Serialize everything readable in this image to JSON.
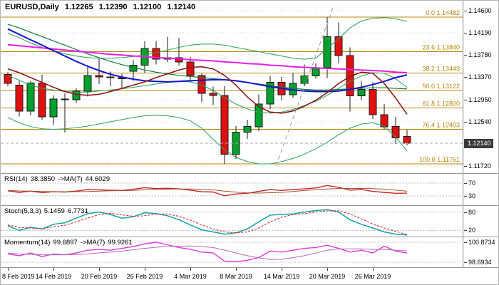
{
  "header": {
    "symbol": "EURUSD,Daily",
    "open": "1.12265",
    "high": "1.12390",
    "low": "1.12100",
    "close": "1.12140"
  },
  "panels": {
    "rsi": {
      "name": "RSI(14)",
      "value": "38.3850",
      "ma_name": "->MA(7)",
      "ma_value": "44.6029"
    },
    "stoch": {
      "name": "Stoch(5,3,3)",
      "value": "5.1459",
      "signal_value": "6.7731"
    },
    "momentum": {
      "name": "Momentum(14)",
      "value": "99.6897",
      "ma_name": "->MA(7)",
      "ma_value": "99.9261"
    }
  },
  "colors": {
    "background": "#FFFFFF",
    "grid": "#D6D6D6",
    "level": "#C0C0C0",
    "fib": "#B8860B",
    "candle_up": "#00A12C",
    "candle_down": "#E01010",
    "candle_outline": "#1A1A1A",
    "badge_bg": "#3A3A3A",
    "badge_text": "#FFFFFF",
    "trendline": "#999999",
    "current_line": "#AAAAAA"
  },
  "chart_data": {
    "type": "candlestick",
    "symbol": "EURUSD",
    "timeframe": "Daily",
    "candle_step": 16,
    "x_labels": [
      {
        "text": "8 Feb 2019",
        "i": 0
      },
      {
        "text": "14 Feb 2019",
        "i": 4
      },
      {
        "text": "20 Feb 2019",
        "i": 8
      },
      {
        "text": "26 Feb 2019",
        "i": 12
      },
      {
        "text": "4 Mar 2019",
        "i": 16
      },
      {
        "text": "8 Mar 2019",
        "i": 20
      },
      {
        "text": "14 Mar 2019",
        "i": 24
      },
      {
        "text": "20 Mar 2019",
        "i": 28
      },
      {
        "text": "26 Mar 2019",
        "i": 32
      }
    ],
    "main": {
      "price_top": 1.146,
      "price_bottom": 1.1172,
      "axis_ticks": [
        {
          "label": "1.14600",
          "price": 1.146
        },
        {
          "label": "1.14190",
          "price": 1.1419
        },
        {
          "label": "1.13780",
          "price": 1.1378
        },
        {
          "label": "1.13370",
          "price": 1.1337
        },
        {
          "label": "1.12950",
          "price": 1.1295
        },
        {
          "label": "1.12540",
          "price": 1.1254
        },
        {
          "label": "1.11720",
          "price": 1.1172
        }
      ],
      "current": {
        "label": "1.12140",
        "price": 1.1214
      },
      "fibonacci": [
        {
          "text": "0.0  1.14482",
          "price": 1.14482
        },
        {
          "text": "23.6  1.13840",
          "price": 1.1384
        },
        {
          "text": "38.2  1.13443",
          "price": 1.13443
        },
        {
          "text": "50.0  1.13122",
          "price": 1.13122
        },
        {
          "text": "61.8  1.12800",
          "price": 1.128
        },
        {
          "text": "76.4  1.12403",
          "price": 1.12403
        },
        {
          "text": "100.0  1.11761",
          "price": 1.11761
        }
      ],
      "trendline": {
        "i1": 23.5,
        "p1": 1.1172,
        "i2": 28.5,
        "p2": 1.1465
      },
      "candles": [
        [
          1.1342,
          1.1346,
          1.132,
          1.1325
        ],
        [
          1.1322,
          1.133,
          1.1264,
          1.1274
        ],
        [
          1.1274,
          1.133,
          1.1266,
          1.1326
        ],
        [
          1.1326,
          1.1341,
          1.1258,
          1.1263
        ],
        [
          1.1263,
          1.1303,
          1.1248,
          1.1296
        ],
        [
          1.1296,
          1.1307,
          1.1234,
          1.1295
        ],
        [
          1.1295,
          1.1316,
          1.1289,
          1.1311
        ],
        [
          1.1311,
          1.1359,
          1.1301,
          1.134
        ],
        [
          1.134,
          1.1371,
          1.1324,
          1.1337
        ],
        [
          1.1337,
          1.1347,
          1.132,
          1.1336
        ],
        [
          1.1336,
          1.1343,
          1.1316,
          1.1334
        ],
        [
          1.1348,
          1.1368,
          1.133,
          1.1359
        ],
        [
          1.1359,
          1.1403,
          1.1345,
          1.139
        ],
        [
          1.139,
          1.1404,
          1.136,
          1.137
        ],
        [
          1.137,
          1.1412,
          1.1365,
          1.1373
        ],
        [
          1.1373,
          1.141,
          1.1358,
          1.1365
        ],
        [
          1.1365,
          1.1374,
          1.133,
          1.134
        ],
        [
          1.134,
          1.1344,
          1.129,
          1.1307
        ],
        [
          1.1307,
          1.1319,
          1.1285,
          1.1303
        ],
        [
          1.1303,
          1.132,
          1.1176,
          1.1194
        ],
        [
          1.1194,
          1.1246,
          1.1185,
          1.1235
        ],
        [
          1.1235,
          1.1258,
          1.1222,
          1.1245
        ],
        [
          1.1245,
          1.1305,
          1.1237,
          1.1287
        ],
        [
          1.1287,
          1.1339,
          1.1278,
          1.1327
        ],
        [
          1.1327,
          1.1337,
          1.1294,
          1.1304
        ],
        [
          1.1304,
          1.1345,
          1.1298,
          1.1325
        ],
        [
          1.1325,
          1.136,
          1.132,
          1.1339
        ],
        [
          1.1339,
          1.1362,
          1.1334,
          1.1354
        ],
        [
          1.1354,
          1.1448,
          1.1335,
          1.1412
        ],
        [
          1.1412,
          1.1438,
          1.1363,
          1.1377
        ],
        [
          1.1377,
          1.1392,
          1.1273,
          1.1302
        ],
        [
          1.1302,
          1.133,
          1.1294,
          1.1314
        ],
        [
          1.1314,
          1.1327,
          1.1259,
          1.1267
        ],
        [
          1.1267,
          1.1287,
          1.124,
          1.1245
        ],
        [
          1.1245,
          1.1263,
          1.1213,
          1.1224
        ],
        [
          1.12265,
          1.1239,
          1.121,
          1.1214
        ]
      ],
      "overlays": [
        {
          "name": "bollinger-upper-band",
          "color": "#28A05A",
          "width": 1,
          "values": [
            1.1418,
            1.141,
            1.14,
            1.1392,
            1.1386,
            1.138,
            1.1376,
            1.1373,
            1.1372,
            1.1372,
            1.1373,
            1.1375,
            1.1378,
            1.1382,
            1.1387,
            1.1392,
            1.1396,
            1.1398,
            1.1398,
            1.1396,
            1.1392,
            1.1388,
            1.1384,
            1.138,
            1.1376,
            1.1372,
            1.137,
            1.1372,
            1.139,
            1.1408,
            1.1428,
            1.1441,
            1.1446,
            1.1447,
            1.1445,
            1.144
          ]
        },
        {
          "name": "bollinger-middle-band",
          "color": "#28A05A",
          "width": 1,
          "values": [
            1.134,
            1.1331,
            1.1322,
            1.1316,
            1.1313,
            1.131,
            1.1309,
            1.1309,
            1.1311,
            1.1313,
            1.1315,
            1.1318,
            1.1321,
            1.1324,
            1.1327,
            1.1329,
            1.1328,
            1.1322,
            1.1312,
            1.1299,
            1.1287,
            1.1278,
            1.1272,
            1.127,
            1.1272,
            1.1277,
            1.1284,
            1.1292,
            1.1303,
            1.1316,
            1.1329,
            1.1339,
            1.1345,
            1.1344,
            1.1334,
            1.1318
          ]
        },
        {
          "name": "bollinger-lower-band",
          "color": "#28A05A",
          "width": 1,
          "values": [
            1.1262,
            1.1252,
            1.1245,
            1.1241,
            1.124,
            1.1241,
            1.1243,
            1.1246,
            1.125,
            1.1254,
            1.1258,
            1.1262,
            1.1265,
            1.1266,
            1.1265,
            1.1262,
            1.1256,
            1.1242,
            1.1222,
            1.1202,
            1.1188,
            1.118,
            1.1176,
            1.1176,
            1.118,
            1.1186,
            1.1194,
            1.1204,
            1.1216,
            1.123,
            1.1242,
            1.125,
            1.1252,
            1.1246,
            1.1226,
            1.12
          ]
        },
        {
          "name": "ma-green-slow",
          "color": "#0F7A3A",
          "width": 1.2,
          "values": [
            1.1435,
            1.1428,
            1.142,
            1.1412,
            1.1404,
            1.1396,
            1.1388,
            1.138,
            1.1373,
            1.1366,
            1.136,
            1.1355,
            1.135,
            1.1346,
            1.1343,
            1.134,
            1.1338,
            1.1336,
            1.1334,
            1.1332,
            1.133,
            1.1327,
            1.1324,
            1.1321,
            1.1318,
            1.1316,
            1.1314,
            1.1313,
            1.1313,
            1.1314,
            1.1315,
            1.1316,
            1.1317,
            1.1317,
            1.1316,
            1.1315
          ]
        },
        {
          "name": "ma-magenta",
          "color": "#E61EE6",
          "width": 2,
          "values": [
            1.1397,
            1.1395,
            1.1393,
            1.1391,
            1.1389,
            1.1387,
            1.1385,
            1.1383,
            1.1381,
            1.1379,
            1.1378,
            1.1376,
            1.1375,
            1.1373,
            1.1372,
            1.1371,
            1.1369,
            1.1368,
            1.1367,
            1.1365,
            1.1364,
            1.1362,
            1.1361,
            1.1359,
            1.1358,
            1.1356,
            1.1355,
            1.1354,
            1.1353,
            1.1352,
            1.1351,
            1.135,
            1.1349,
            1.1348,
            1.1346,
            1.1345
          ]
        },
        {
          "name": "ma-blue",
          "color": "#1414CC",
          "width": 2,
          "values": [
            1.1426,
            1.1416,
            1.1406,
            1.1396,
            1.1386,
            1.1376,
            1.1366,
            1.1357,
            1.1349,
            1.1342,
            1.1337,
            1.1333,
            1.133,
            1.1329,
            1.1328,
            1.1329,
            1.133,
            1.1331,
            1.1332,
            1.1332,
            1.133,
            1.1327,
            1.1323,
            1.1319,
            1.1316,
            1.1313,
            1.1311,
            1.131,
            1.131,
            1.1311,
            1.1314,
            1.1318,
            1.1323,
            1.1329,
            1.1336,
            1.1341
          ]
        },
        {
          "name": "ma-darkred",
          "color": "#8B1A1A",
          "width": 1.6,
          "values": [
            1.1352,
            1.1345,
            1.1336,
            1.1327,
            1.1318,
            1.131,
            1.1305,
            1.1303,
            1.1305,
            1.131,
            1.1316,
            1.1322,
            1.1328,
            1.1336,
            1.1343,
            1.135,
            1.1355,
            1.1356,
            1.1352,
            1.134,
            1.1322,
            1.13,
            1.1282,
            1.1272,
            1.127,
            1.1274,
            1.1283,
            1.1294,
            1.1308,
            1.1325,
            1.1338,
            1.1346,
            1.1344,
            1.1325,
            1.1298,
            1.1268
          ]
        }
      ]
    },
    "rsi": {
      "scale_min": 0,
      "scale_max": 100,
      "levels": [
        {
          "label": "70",
          "value": 70
        },
        {
          "label": "30",
          "value": 30
        }
      ],
      "series": [
        {
          "name": "rsi-line",
          "color": "#C62828",
          "width": 1.4,
          "values": [
            46,
            41,
            45,
            40,
            43,
            42,
            45,
            50,
            49,
            48,
            47,
            51,
            56,
            53,
            54,
            52,
            48,
            43,
            42,
            30,
            36,
            38,
            44,
            50,
            47,
            50,
            52,
            55,
            63,
            57,
            48,
            50,
            44,
            41,
            38,
            38.4
          ]
        },
        {
          "name": "rsi-ma-line",
          "color": "#A0522D",
          "width": 1,
          "values": [
            47,
            45.5,
            44.8,
            43.8,
            43.2,
            42.8,
            43.1,
            43.7,
            44.9,
            45.9,
            46.3,
            47.4,
            48.9,
            50.6,
            51.1,
            51.6,
            51.6,
            50.4,
            49.1,
            44.9,
            41.9,
            39.0,
            38.7,
            39.7,
            41.0,
            43.6,
            46.9,
            49.3,
            51.9,
            53.4,
            53.1,
            53.6,
            52.7,
            51.1,
            48.0,
            44.6
          ]
        }
      ]
    },
    "stoch": {
      "scale_min": 0,
      "scale_max": 100,
      "levels": [
        {
          "label": "80",
          "value": 80
        },
        {
          "label": "20",
          "value": 20
        }
      ],
      "series": [
        {
          "name": "stoch-main-line",
          "color": "#17A2A2",
          "width": 1.5,
          "values": [
            35,
            20,
            30,
            25,
            40,
            45,
            60,
            75,
            80,
            72,
            60,
            65,
            78,
            75,
            68,
            55,
            38,
            22,
            15,
            8,
            12,
            25,
            48,
            70,
            72,
            74,
            80,
            85,
            88,
            80,
            55,
            40,
            28,
            15,
            8,
            5.1
          ]
        },
        {
          "name": "stoch-signal-line",
          "color": "#CC2222",
          "width": 1,
          "dash": "3,2",
          "values": [
            38,
            30,
            28,
            25,
            32,
            37,
            48,
            60,
            72,
            76,
            71,
            66,
            68,
            73,
            74,
            66,
            54,
            38,
            25,
            15,
            12,
            15,
            28,
            48,
            63,
            72,
            75,
            80,
            84,
            84,
            74,
            58,
            41,
            28,
            17,
            6.8
          ]
        }
      ]
    },
    "momentum": {
      "scale_min": 98.6934,
      "scale_max": 100.8734,
      "levels": [
        {
          "label": "100.8734",
          "value": 100.8734
        },
        {
          "label": "98.6934",
          "value": 98.6934
        }
      ],
      "series": [
        {
          "name": "momentum-line",
          "color": "#DD3BDD",
          "width": 1.4,
          "values": [
            99.6,
            99.4,
            99.7,
            99.3,
            99.6,
            99.5,
            99.7,
            100.0,
            100.1,
            100.0,
            100.2,
            100.4,
            100.7,
            100.87,
            100.6,
            100.3,
            100.1,
            99.8,
            99.7,
            98.8,
            98.75,
            98.9,
            99.2,
            99.9,
            99.8,
            100.0,
            100.2,
            100.3,
            100.55,
            100.2,
            99.8,
            100.0,
            99.7,
            100.45,
            99.9,
            99.69
          ]
        },
        {
          "name": "momentum-ma-line",
          "color": "#B06AB0",
          "width": 1,
          "values": [
            99.7,
            99.6,
            99.55,
            99.5,
            99.5,
            99.5,
            99.54,
            99.6,
            99.71,
            99.8,
            99.9,
            100.06,
            100.2,
            100.33,
            100.41,
            100.44,
            100.46,
            100.4,
            100.3,
            100.02,
            99.7,
            99.4,
            99.16,
            99.0,
            99.01,
            99.19,
            99.4,
            99.69,
            99.99,
            100.14,
            100.15,
            100.15,
            100.09,
            100.1,
            100.0,
            99.93
          ]
        }
      ]
    }
  }
}
